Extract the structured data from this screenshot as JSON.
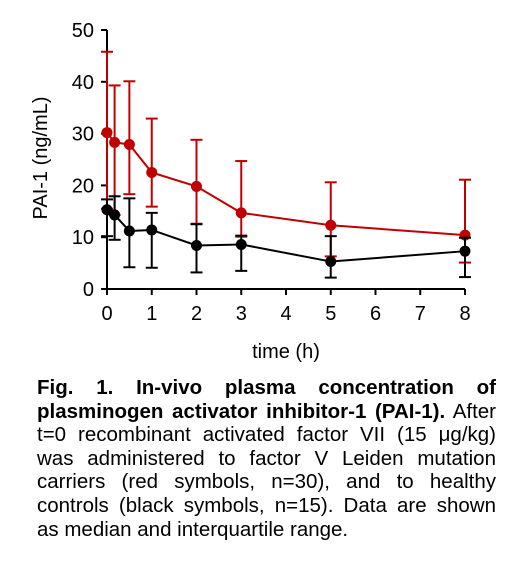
{
  "chart_data": {
    "type": "line",
    "xlabel": "time (h)",
    "ylabel": "PAI-1 (ng/mL)",
    "xlim": [
      0,
      8
    ],
    "ylim": [
      0,
      50
    ],
    "xticks": [
      "0",
      "1",
      "2",
      "3",
      "4",
      "5",
      "6",
      "7",
      "8"
    ],
    "yticks": [
      "0",
      "10",
      "20",
      "30",
      "40",
      "50"
    ],
    "grid": false,
    "series": [
      {
        "color": "#c00000",
        "points": [
          {
            "x": 0,
            "y": 30.2,
            "lo": 15.5,
            "hi": 45.8
          },
          {
            "x": 0.17,
            "y": 28.3,
            "lo": 14.3,
            "hi": 39.3
          },
          {
            "x": 0.5,
            "y": 27.9,
            "lo": 18.3,
            "hi": 40.1
          },
          {
            "x": 1,
            "y": 22.5,
            "lo": 15.9,
            "hi": 32.9
          },
          {
            "x": 2,
            "y": 19.8,
            "lo": 12.6,
            "hi": 28.8
          },
          {
            "x": 3,
            "y": 14.7,
            "lo": 10.1,
            "hi": 24.7
          },
          {
            "x": 5,
            "y": 12.3,
            "lo": 6.3,
            "hi": 20.6
          },
          {
            "x": 8,
            "y": 10.4,
            "lo": 5.1,
            "hi": 21.1
          }
        ]
      },
      {
        "color": "#000000",
        "points": [
          {
            "x": 0,
            "y": 15.3,
            "lo": 10.2,
            "hi": 17.3
          },
          {
            "x": 0.17,
            "y": 14.3,
            "lo": 9.5,
            "hi": 17.9
          },
          {
            "x": 0.5,
            "y": 11.2,
            "lo": 4.2,
            "hi": 17.5
          },
          {
            "x": 1,
            "y": 11.4,
            "lo": 4.1,
            "hi": 14.7
          },
          {
            "x": 2,
            "y": 8.4,
            "lo": 3.2,
            "hi": 12.5
          },
          {
            "x": 3,
            "y": 8.6,
            "lo": 3.5,
            "hi": 10.3
          },
          {
            "x": 5,
            "y": 5.3,
            "lo": 2.2,
            "hi": 10.2
          },
          {
            "x": 8,
            "y": 7.3,
            "lo": 2.3,
            "hi": 9.9
          }
        ]
      }
    ]
  },
  "caption": {
    "bold": "Fig. 1. In-vivo plasma concentration of plasminogen activator inhibitor-1 (PAI-1).",
    "text": " After t=0 recombinant activated factor VII (15 μg/kg) was administered to factor V Leiden mutation carriers (red symbols, n=30), and to healthy controls (black symbols, n=15). Data are shown as median and interquartile range."
  }
}
